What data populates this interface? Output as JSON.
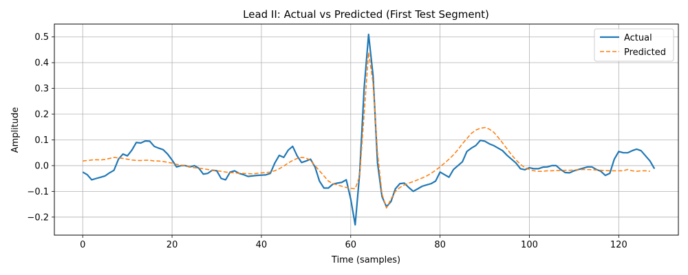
{
  "chart_data": {
    "type": "line",
    "title": "Lead II: Actual vs Predicted (First Test Segment)",
    "xlabel": "Time (samples)",
    "ylabel": "Amplitude",
    "xlim": [
      -6.35,
      133.35
    ],
    "ylim": [
      -0.27,
      0.55
    ],
    "xticks": [
      0,
      20,
      40,
      60,
      80,
      100,
      120
    ],
    "yticks": [
      -0.2,
      -0.1,
      0.0,
      0.1,
      0.2,
      0.3,
      0.4,
      0.5
    ],
    "ytick_labels": [
      "−0.2",
      "−0.1",
      "0.0",
      "0.1",
      "0.2",
      "0.3",
      "0.4",
      "0.5"
    ],
    "grid": true,
    "legend_position": "top-right",
    "series": [
      {
        "name": "Actual",
        "color": "#1f77b4",
        "style": "solid",
        "values": [
          -0.025,
          -0.035,
          -0.055,
          -0.05,
          -0.045,
          -0.04,
          -0.028,
          -0.018,
          0.025,
          0.045,
          0.038,
          0.06,
          0.09,
          0.088,
          0.096,
          0.095,
          0.075,
          0.068,
          0.062,
          0.045,
          0.022,
          -0.005,
          0.0,
          0.0,
          -0.005,
          0.0,
          -0.01,
          -0.033,
          -0.03,
          -0.018,
          -0.02,
          -0.05,
          -0.055,
          -0.025,
          -0.02,
          -0.03,
          -0.035,
          -0.042,
          -0.04,
          -0.038,
          -0.037,
          -0.036,
          -0.03,
          0.01,
          0.04,
          0.032,
          0.06,
          0.075,
          0.038,
          0.012,
          0.018,
          0.025,
          -0.005,
          -0.06,
          -0.087,
          -0.087,
          -0.072,
          -0.068,
          -0.065,
          -0.055,
          -0.13,
          -0.23,
          -0.03,
          0.3,
          0.51,
          0.35,
          0.01,
          -0.12,
          -0.16,
          -0.14,
          -0.09,
          -0.07,
          -0.068,
          -0.085,
          -0.1,
          -0.09,
          -0.08,
          -0.075,
          -0.07,
          -0.06,
          -0.025,
          -0.035,
          -0.045,
          -0.015,
          0.0,
          0.015,
          0.055,
          0.068,
          0.078,
          0.098,
          0.095,
          0.085,
          0.078,
          0.068,
          0.058,
          0.04,
          0.025,
          0.01,
          -0.012,
          -0.016,
          -0.008,
          -0.012,
          -0.012,
          -0.006,
          -0.005,
          0.0,
          0.0,
          -0.015,
          -0.027,
          -0.028,
          -0.02,
          -0.015,
          -0.01,
          -0.005,
          -0.005,
          -0.015,
          -0.022,
          -0.038,
          -0.03,
          0.025,
          0.055,
          0.05,
          0.05,
          0.058,
          0.064,
          0.058,
          0.038,
          0.018,
          -0.012
        ]
      },
      {
        "name": "Predicted",
        "color": "#ff7f0e",
        "style": "dashed",
        "values": [
          0.018,
          0.02,
          0.022,
          0.023,
          0.022,
          0.024,
          0.028,
          0.032,
          0.03,
          0.028,
          0.025,
          0.022,
          0.02,
          0.02,
          0.021,
          0.021,
          0.018,
          0.018,
          0.016,
          0.013,
          0.01,
          0.005,
          0.002,
          0.0,
          -0.005,
          -0.008,
          -0.01,
          -0.012,
          -0.015,
          -0.018,
          -0.02,
          -0.022,
          -0.025,
          -0.027,
          -0.028,
          -0.03,
          -0.03,
          -0.031,
          -0.032,
          -0.03,
          -0.028,
          -0.027,
          -0.025,
          -0.02,
          -0.012,
          -0.002,
          0.01,
          0.02,
          0.028,
          0.032,
          0.03,
          0.02,
          0.0,
          -0.02,
          -0.04,
          -0.06,
          -0.07,
          -0.075,
          -0.08,
          -0.085,
          -0.088,
          -0.09,
          -0.04,
          0.2,
          0.44,
          0.32,
          0.05,
          -0.11,
          -0.165,
          -0.13,
          -0.1,
          -0.085,
          -0.075,
          -0.068,
          -0.062,
          -0.055,
          -0.048,
          -0.04,
          -0.03,
          -0.018,
          -0.005,
          0.01,
          0.025,
          0.042,
          0.062,
          0.085,
          0.105,
          0.125,
          0.138,
          0.145,
          0.148,
          0.142,
          0.13,
          0.11,
          0.088,
          0.065,
          0.042,
          0.022,
          0.005,
          -0.008,
          -0.015,
          -0.02,
          -0.022,
          -0.022,
          -0.02,
          -0.02,
          -0.019,
          -0.019,
          -0.018,
          -0.018,
          -0.017,
          -0.016,
          -0.015,
          -0.015,
          -0.016,
          -0.017,
          -0.018,
          -0.019,
          -0.02,
          -0.02,
          -0.02,
          -0.02,
          -0.015,
          -0.02,
          -0.022,
          -0.02,
          -0.02,
          -0.022
        ]
      }
    ]
  }
}
